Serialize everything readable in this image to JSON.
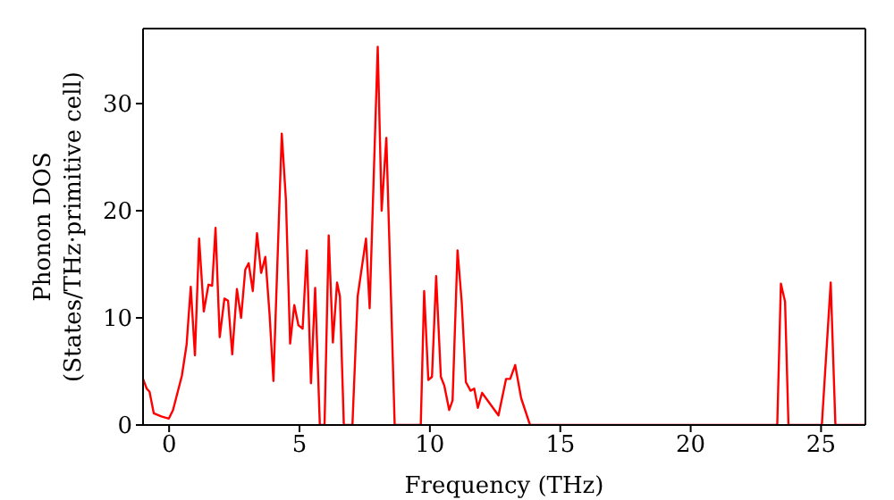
{
  "chart_data": {
    "type": "line",
    "xlabel": "Frequency (THz)",
    "ylabel": "Phonon DOS\n(States/THz·primitive cell)",
    "xlim": [
      -1,
      26.7
    ],
    "ylim": [
      0,
      37
    ],
    "xticks": [
      0,
      5,
      10,
      15,
      20,
      25
    ],
    "yticks": [
      0,
      10,
      20,
      30
    ],
    "grid": false,
    "legend": false,
    "marker": "none",
    "line_style": "solid",
    "series": [
      {
        "color": "#ff0000",
        "x": [
          -1,
          -0.86,
          -0.75,
          -0.59,
          -0.3,
          -0.01,
          0.15,
          0.49,
          0.67,
          0.83,
          0.99,
          1.15,
          1.33,
          1.51,
          1.65,
          1.78,
          1.94,
          2.12,
          2.26,
          2.42,
          2.6,
          2.76,
          2.92,
          3.05,
          3.21,
          3.37,
          3.53,
          3.69,
          3.85,
          4.0,
          4.32,
          4.48,
          4.64,
          4.8,
          4.96,
          5.12,
          5.28,
          5.44,
          5.6,
          5.78,
          5.96,
          6.12,
          6.28,
          6.44,
          6.55,
          6.7,
          7.03,
          7.23,
          7.55,
          7.69,
          8.0,
          8.15,
          8.33,
          8.65,
          9.65,
          9.78,
          9.94,
          10.08,
          10.24,
          10.42,
          10.55,
          10.74,
          10.87,
          11.06,
          11.22,
          11.38,
          11.56,
          11.7,
          11.84,
          12.0,
          12.3,
          12.63,
          12.92,
          13.08,
          13.27,
          13.5,
          13.84,
          23.32,
          23.46,
          23.62,
          23.75,
          25.03,
          25.37,
          25.55,
          26.7
        ],
        "values": [
          4.3,
          3.4,
          3.1,
          1.1,
          0.8,
          0.6,
          1.4,
          4.6,
          7.5,
          12.9,
          6.5,
          17.4,
          10.6,
          13.1,
          13,
          18.4,
          8.2,
          11.8,
          11.6,
          6.6,
          12.7,
          10,
          14.5,
          15.1,
          12.5,
          17.9,
          14.2,
          15.7,
          10.4,
          4.1,
          27.2,
          21,
          7.6,
          11.2,
          9.3,
          9,
          16.3,
          3.9,
          12.8,
          0,
          0,
          17.7,
          7.7,
          13.3,
          12,
          0,
          0,
          12,
          17.4,
          10.9,
          35.3,
          20,
          26.8,
          0,
          0,
          12.5,
          4.2,
          4.5,
          13.9,
          4.5,
          3.7,
          1.4,
          2.3,
          16.3,
          11.5,
          4,
          3.2,
          3.4,
          1.6,
          3,
          2,
          0.9,
          4.3,
          4.3,
          5.6,
          2.5,
          0,
          0,
          13.2,
          11.5,
          0,
          0,
          13.3,
          0,
          0
        ]
      }
    ]
  }
}
